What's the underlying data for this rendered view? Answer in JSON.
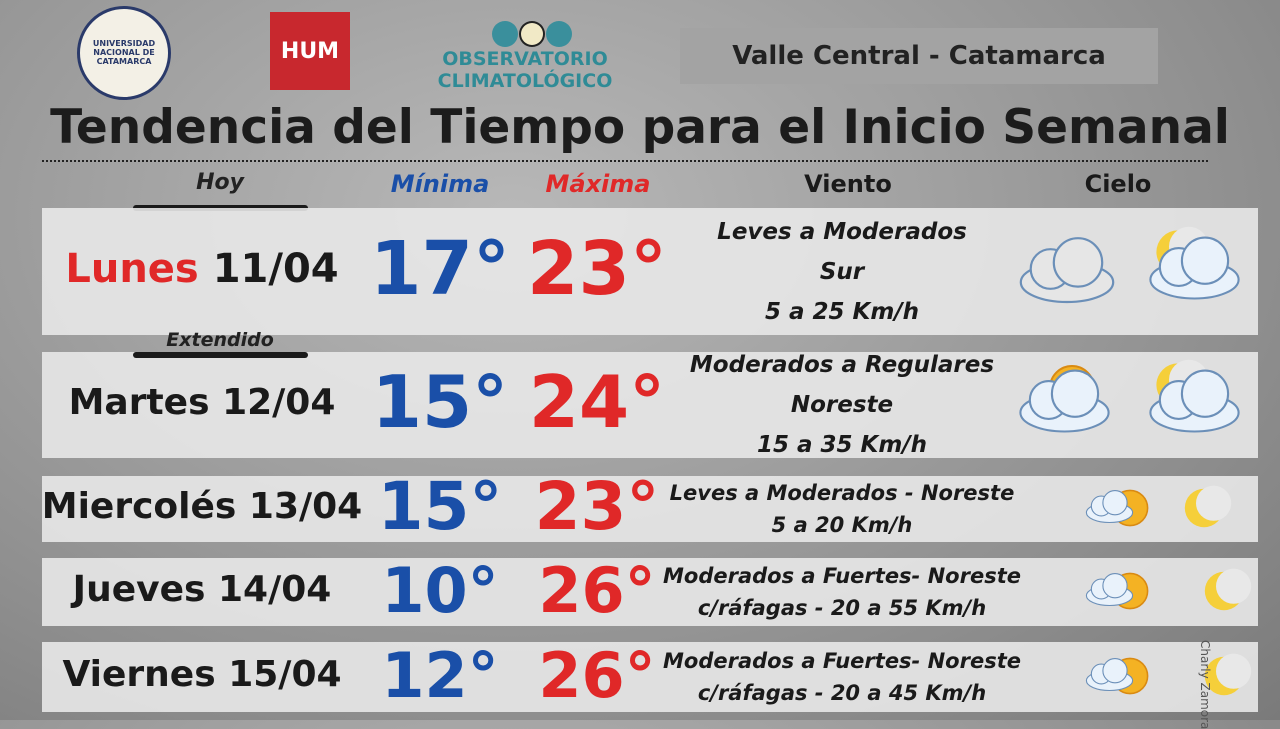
{
  "header": {
    "university": "UNIVERSIDAD NACIONAL DE CATAMARCA",
    "hum": "HUM",
    "observatory": [
      "OBSERVATORIO",
      "CLIMATOLÓGICO"
    ],
    "region": "Valle Central - Catamarca",
    "title": "Tendencia del Tiempo para el Inicio Semanal"
  },
  "columns": {
    "today": "Hoy",
    "extended": "Extendido",
    "min": "Mínima",
    "max": "Máxima",
    "wind": "Viento",
    "sky": "Cielo"
  },
  "rows": [
    {
      "day": "Lunes",
      "date": "11/04",
      "min": "17°",
      "max": "23°",
      "wind": [
        "Leves a Moderados",
        "Sur",
        "5 a 25 Km/h"
      ]
    },
    {
      "day": "Martes",
      "date": "12/04",
      "min": "15°",
      "max": "24°",
      "wind": [
        "Moderados a Regulares",
        "Noreste",
        "15 a 35 Km/h"
      ]
    },
    {
      "day": "Miercolés",
      "date": "13/04",
      "min": "15°",
      "max": "23°",
      "wind": [
        "Leves a Moderados  - Noreste",
        "5 a 20 Km/h"
      ]
    },
    {
      "day": "Jueves",
      "date": "14/04",
      "min": "10°",
      "max": "26°",
      "wind": [
        "Moderados a Fuertes- Noreste",
        "c/ráfagas - 20 a 55 Km/h"
      ]
    },
    {
      "day": "Viernes",
      "date": "15/04",
      "min": "12°",
      "max": "26°",
      "wind": [
        "Moderados a Fuertes- Noreste",
        "c/ráfagas - 20 a 45 Km/h"
      ]
    }
  ],
  "credit": "Charly Zamora"
}
